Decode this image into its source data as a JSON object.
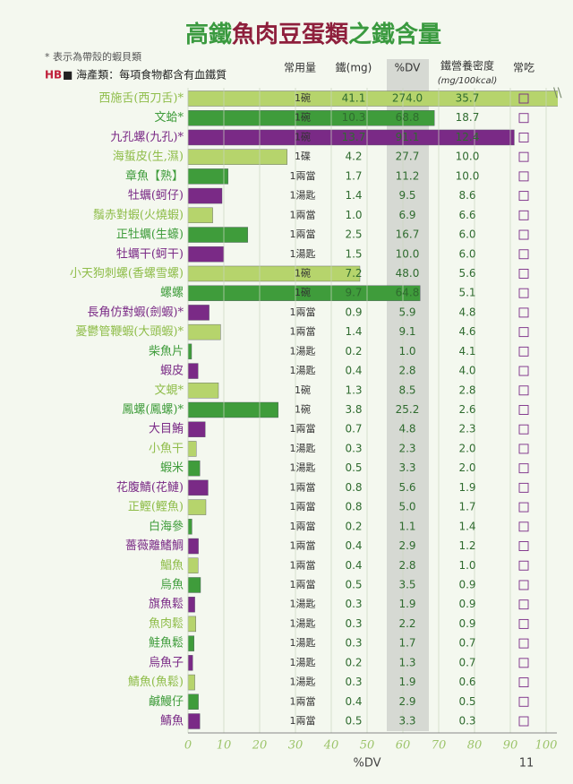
{
  "chart_data": {
    "type": "bar",
    "title": [
      "高鐵",
      "魚肉豆蛋類",
      "之鐵含量"
    ],
    "notes": [
      "* 表示為帶殼的蝦貝類",
      "HB",
      "■ 海產類：每項食物都含有血鐵質"
    ],
    "columns": [
      "常用量",
      "鐵(mg)",
      "%DV",
      "鐵營養密度",
      "(mg/100kcal)",
      "常吃"
    ],
    "categories": [
      "西施舌(西刀舌)*",
      "文蛤*",
      "九孔螺(九孔)*",
      "海蜇皮(生,濕)",
      "章魚【熟】",
      "牡蠣(蚵仔)",
      "鬚赤對蝦(火燒蝦)",
      "正牡蠣(生蠔)",
      "牡蠣干(蚵干)",
      "小天狗刺螺(香螺雪螺)",
      "螺螺",
      "長角仿對蝦(劍蝦)*",
      "憂鬱管鞭蝦(大頭蝦)*",
      "柴魚片",
      "蝦皮",
      "文蜆*",
      "鳳螺(鳳螺)*",
      "大目鮪",
      "小魚干",
      "蝦米",
      "花腹鯖(花鰱)",
      "正鰹(鰹魚)",
      "白海參",
      "薔薇離鰭鯛",
      "鯧魚",
      "烏魚",
      "旗魚鬆",
      "魚肉鬆",
      "鮭魚鬆",
      "烏魚子",
      "鯖魚(魚鬆)",
      "鹹鰻仔",
      "鯖魚"
    ],
    "portion": [
      "1碗",
      "1碗",
      "1碗",
      "1碟",
      "1兩當",
      "1湯匙",
      "1兩當",
      "1兩當",
      "1湯匙",
      "1碗",
      "1碗",
      "1兩當",
      "1兩當",
      "1湯匙",
      "1湯匙",
      "1碗",
      "1碗",
      "1兩當",
      "1湯匙",
      "1湯匙",
      "1兩當",
      "1兩當",
      "1兩當",
      "1兩當",
      "1兩當",
      "1兩當",
      "1湯匙",
      "1湯匙",
      "1湯匙",
      "1湯匙",
      "1湯匙",
      "1兩當",
      "1兩當"
    ],
    "iron": [
      "41.1",
      "10.3",
      "13.7",
      "4.2",
      "1.7",
      "1.4",
      "1.0",
      "2.5",
      "1.5",
      "7.2",
      "9.7",
      "0.9",
      "1.4",
      "0.2",
      "0.4",
      "1.3",
      "3.8",
      "0.7",
      "0.3",
      "0.5",
      "0.8",
      "0.8",
      "0.2",
      "0.4",
      "0.4",
      "0.5",
      "0.3",
      "0.3",
      "0.3",
      "0.2",
      "0.3",
      "0.4",
      "0.5"
    ],
    "values": [
      274.0,
      68.8,
      91.1,
      27.7,
      11.2,
      9.5,
      6.9,
      16.7,
      10.0,
      48.0,
      64.8,
      5.9,
      9.1,
      1.0,
      2.8,
      8.5,
      25.2,
      4.8,
      2.3,
      3.3,
      5.6,
      5.0,
      1.1,
      2.9,
      2.8,
      3.5,
      1.9,
      2.2,
      1.7,
      1.3,
      1.9,
      2.9,
      3.3
    ],
    "value_labels": [
      "274.0",
      "68.8",
      "91.1",
      "27.7",
      "11.2",
      "9.5",
      "6.9",
      "16.7",
      "10.0",
      "48.0",
      "64.8",
      "5.9",
      "9.1",
      "1.0",
      "2.8",
      "8.5",
      "25.2",
      "4.8",
      "2.3",
      "3.3",
      "5.6",
      "5.0",
      "1.1",
      "2.9",
      "2.8",
      "3.5",
      "1.9",
      "2.2",
      "1.7",
      "1.3",
      "1.9",
      "2.9",
      "3.3"
    ],
    "density": [
      "35.7",
      "18.7",
      "12.4",
      "10.0",
      "10.0",
      "8.6",
      "6.6",
      "6.0",
      "6.0",
      "5.6",
      "5.1",
      "4.8",
      "4.6",
      "4.1",
      "4.0",
      "2.8",
      "2.6",
      "2.3",
      "2.0",
      "2.0",
      "1.9",
      "1.7",
      "1.4",
      "1.2",
      "1.0",
      "0.9",
      "0.9",
      "0.9",
      "0.7",
      "0.7",
      "0.6",
      "0.5",
      "0.3"
    ],
    "palette": [
      "#b6d46c",
      "#3f9c3b",
      "#7a2a86"
    ],
    "xlim": [
      0,
      100
    ],
    "xticks": [
      0,
      10,
      20,
      30,
      40,
      50,
      60,
      70,
      80,
      90,
      100
    ],
    "xlabel": "%DV",
    "page_number": "11"
  }
}
